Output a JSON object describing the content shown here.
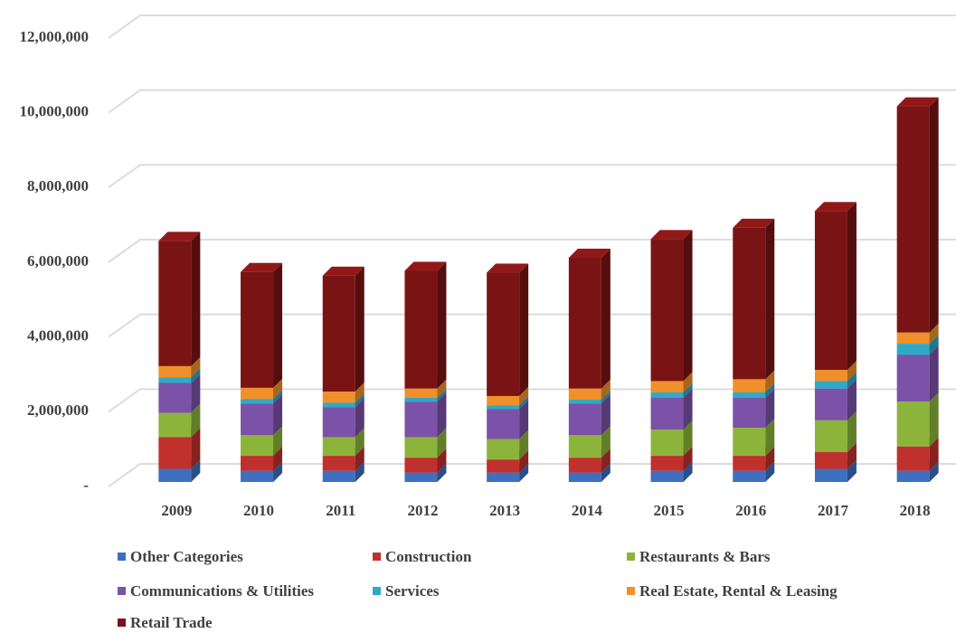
{
  "chart_data": {
    "type": "bar3d-stacked",
    "categories": [
      "2009",
      "2010",
      "2011",
      "2012",
      "2013",
      "2014",
      "2015",
      "2016",
      "2017",
      "2018"
    ],
    "series": [
      {
        "name": "Other Categories",
        "color": "#3f6fbf",
        "values": [
          350000,
          300000,
          300000,
          250000,
          250000,
          250000,
          300000,
          300000,
          350000,
          300000
        ]
      },
      {
        "name": "Construction",
        "color": "#c0302d",
        "values": [
          850000,
          400000,
          400000,
          400000,
          350000,
          400000,
          400000,
          400000,
          450000,
          650000
        ]
      },
      {
        "name": "Restaurants & Bars",
        "color": "#8db43a",
        "values": [
          650000,
          550000,
          500000,
          550000,
          550000,
          600000,
          700000,
          750000,
          850000,
          1200000
        ]
      },
      {
        "name": "Communications & Utilities",
        "color": "#7c52a8",
        "values": [
          800000,
          850000,
          800000,
          950000,
          800000,
          850000,
          850000,
          800000,
          850000,
          1250000
        ]
      },
      {
        "name": "Services",
        "color": "#2fa9c6",
        "values": [
          150000,
          120000,
          120000,
          100000,
          100000,
          100000,
          150000,
          150000,
          200000,
          300000
        ]
      },
      {
        "name": "Real Estate, Rental & Leasing",
        "color": "#f0902a",
        "values": [
          300000,
          300000,
          300000,
          250000,
          250000,
          300000,
          300000,
          350000,
          300000,
          300000
        ]
      },
      {
        "name": "Retail Trade",
        "color": "#7a1414",
        "values": [
          3350000,
          3100000,
          3100000,
          3150000,
          3300000,
          3500000,
          3800000,
          4050000,
          4250000,
          6050000
        ]
      }
    ],
    "ylim": [
      0,
      12000000
    ],
    "yticks": [
      {
        "value": 0,
        "label": "-"
      },
      {
        "value": 2000000,
        "label": "2,000,000"
      },
      {
        "value": 4000000,
        "label": "4,000,000"
      },
      {
        "value": 6000000,
        "label": "6,000,000"
      },
      {
        "value": 8000000,
        "label": "8,000,000"
      },
      {
        "value": 10000000,
        "label": "10,000,000"
      },
      {
        "value": 12000000,
        "label": "12,000,000"
      }
    ],
    "grid": true,
    "legend": "bottom"
  }
}
